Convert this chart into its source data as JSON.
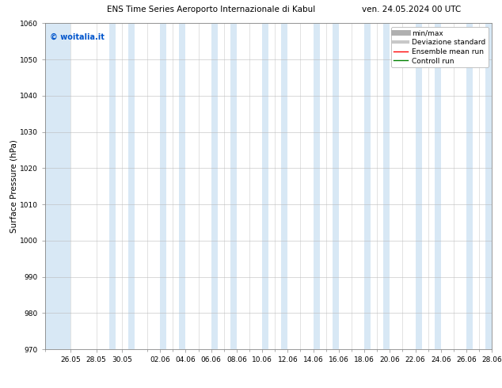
{
  "title_left": "ENS Time Series Aeroporto Internazionale di Kabul",
  "title_right": "ven. 24.05.2024 00 UTC",
  "ylabel": "Surface Pressure (hPa)",
  "ylim": [
    970,
    1060
  ],
  "yticks": [
    970,
    980,
    990,
    1000,
    1010,
    1020,
    1030,
    1040,
    1050,
    1060
  ],
  "xtick_labels": [
    "26.05",
    "28.05",
    "30.05",
    "02.06",
    "04.06",
    "06.06",
    "08.06",
    "10.06",
    "12.06",
    "14.06",
    "16.06",
    "18.06",
    "20.06",
    "22.06",
    "24.06",
    "26.06",
    "28.06"
  ],
  "watermark": "© woitalia.it",
  "watermark_color": "#0055cc",
  "band_color": "#d8e8f5",
  "background_color": "#ffffff",
  "legend_minmax_color": "#b0b0b0",
  "legend_std_color": "#c8c8c8",
  "legend_mean_color": "#ff0000",
  "legend_control_color": "#008000",
  "title_fontsize": 7.5,
  "ylabel_fontsize": 7.5,
  "tick_fontsize": 6.5,
  "legend_fontsize": 6.5,
  "watermark_fontsize": 7
}
